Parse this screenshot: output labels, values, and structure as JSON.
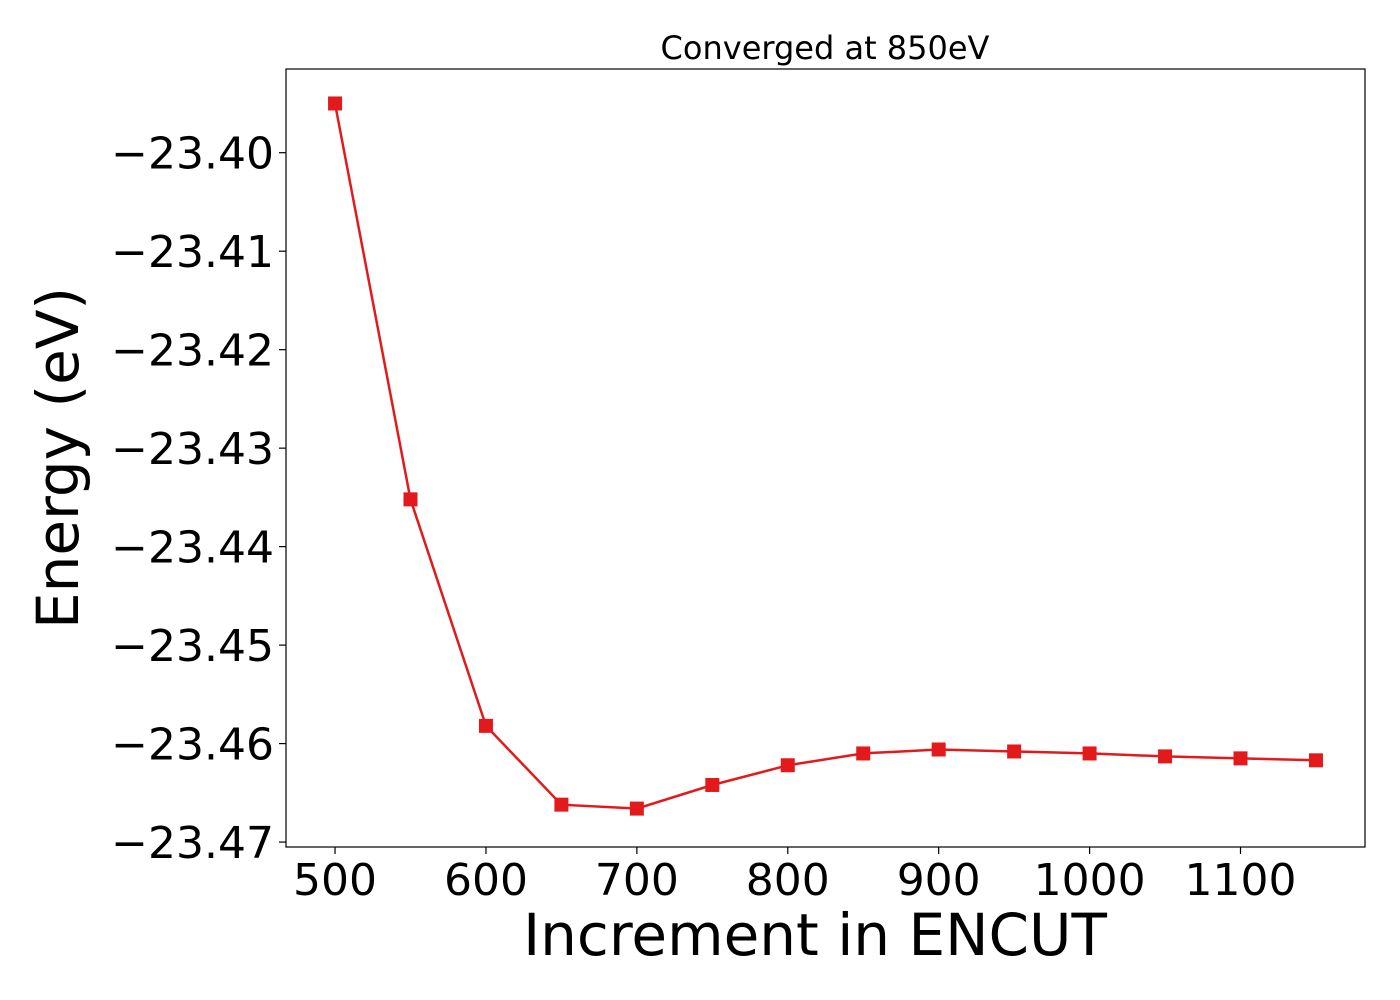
{
  "chart_data": {
    "type": "line",
    "title": "Converged at 850eV",
    "xlabel": "Increment in ENCUT",
    "ylabel": "Energy (eV)",
    "xlim": [
      467.5,
      1182.5
    ],
    "ylim": [
      -23.4705,
      -23.3915
    ],
    "xticks": [
      500,
      600,
      700,
      800,
      900,
      1000,
      1100
    ],
    "yticks": [
      -23.4,
      -23.41,
      -23.42,
      -23.43,
      -23.44,
      -23.45,
      -23.46,
      -23.47
    ],
    "xtick_labels": [
      "500",
      "600",
      "700",
      "800",
      "900",
      "1000",
      "1100"
    ],
    "ytick_labels": [
      "−23.40",
      "−23.41",
      "−23.42",
      "−23.43",
      "−23.44",
      "−23.45",
      "−23.46",
      "−23.47"
    ],
    "grid": false,
    "legend": "none",
    "series": [
      {
        "color": "#e31a1c",
        "marker": "square",
        "x": [
          500,
          550,
          600,
          650,
          700,
          750,
          800,
          850,
          900,
          950,
          1000,
          1050,
          1100,
          1150
        ],
        "y": [
          -23.395,
          -23.4352,
          -23.4582,
          -23.4662,
          -23.4666,
          -23.4642,
          -23.4622,
          -23.461,
          -23.4606,
          -23.4608,
          -23.461,
          -23.4613,
          -23.4615,
          -23.4617
        ]
      }
    ]
  }
}
